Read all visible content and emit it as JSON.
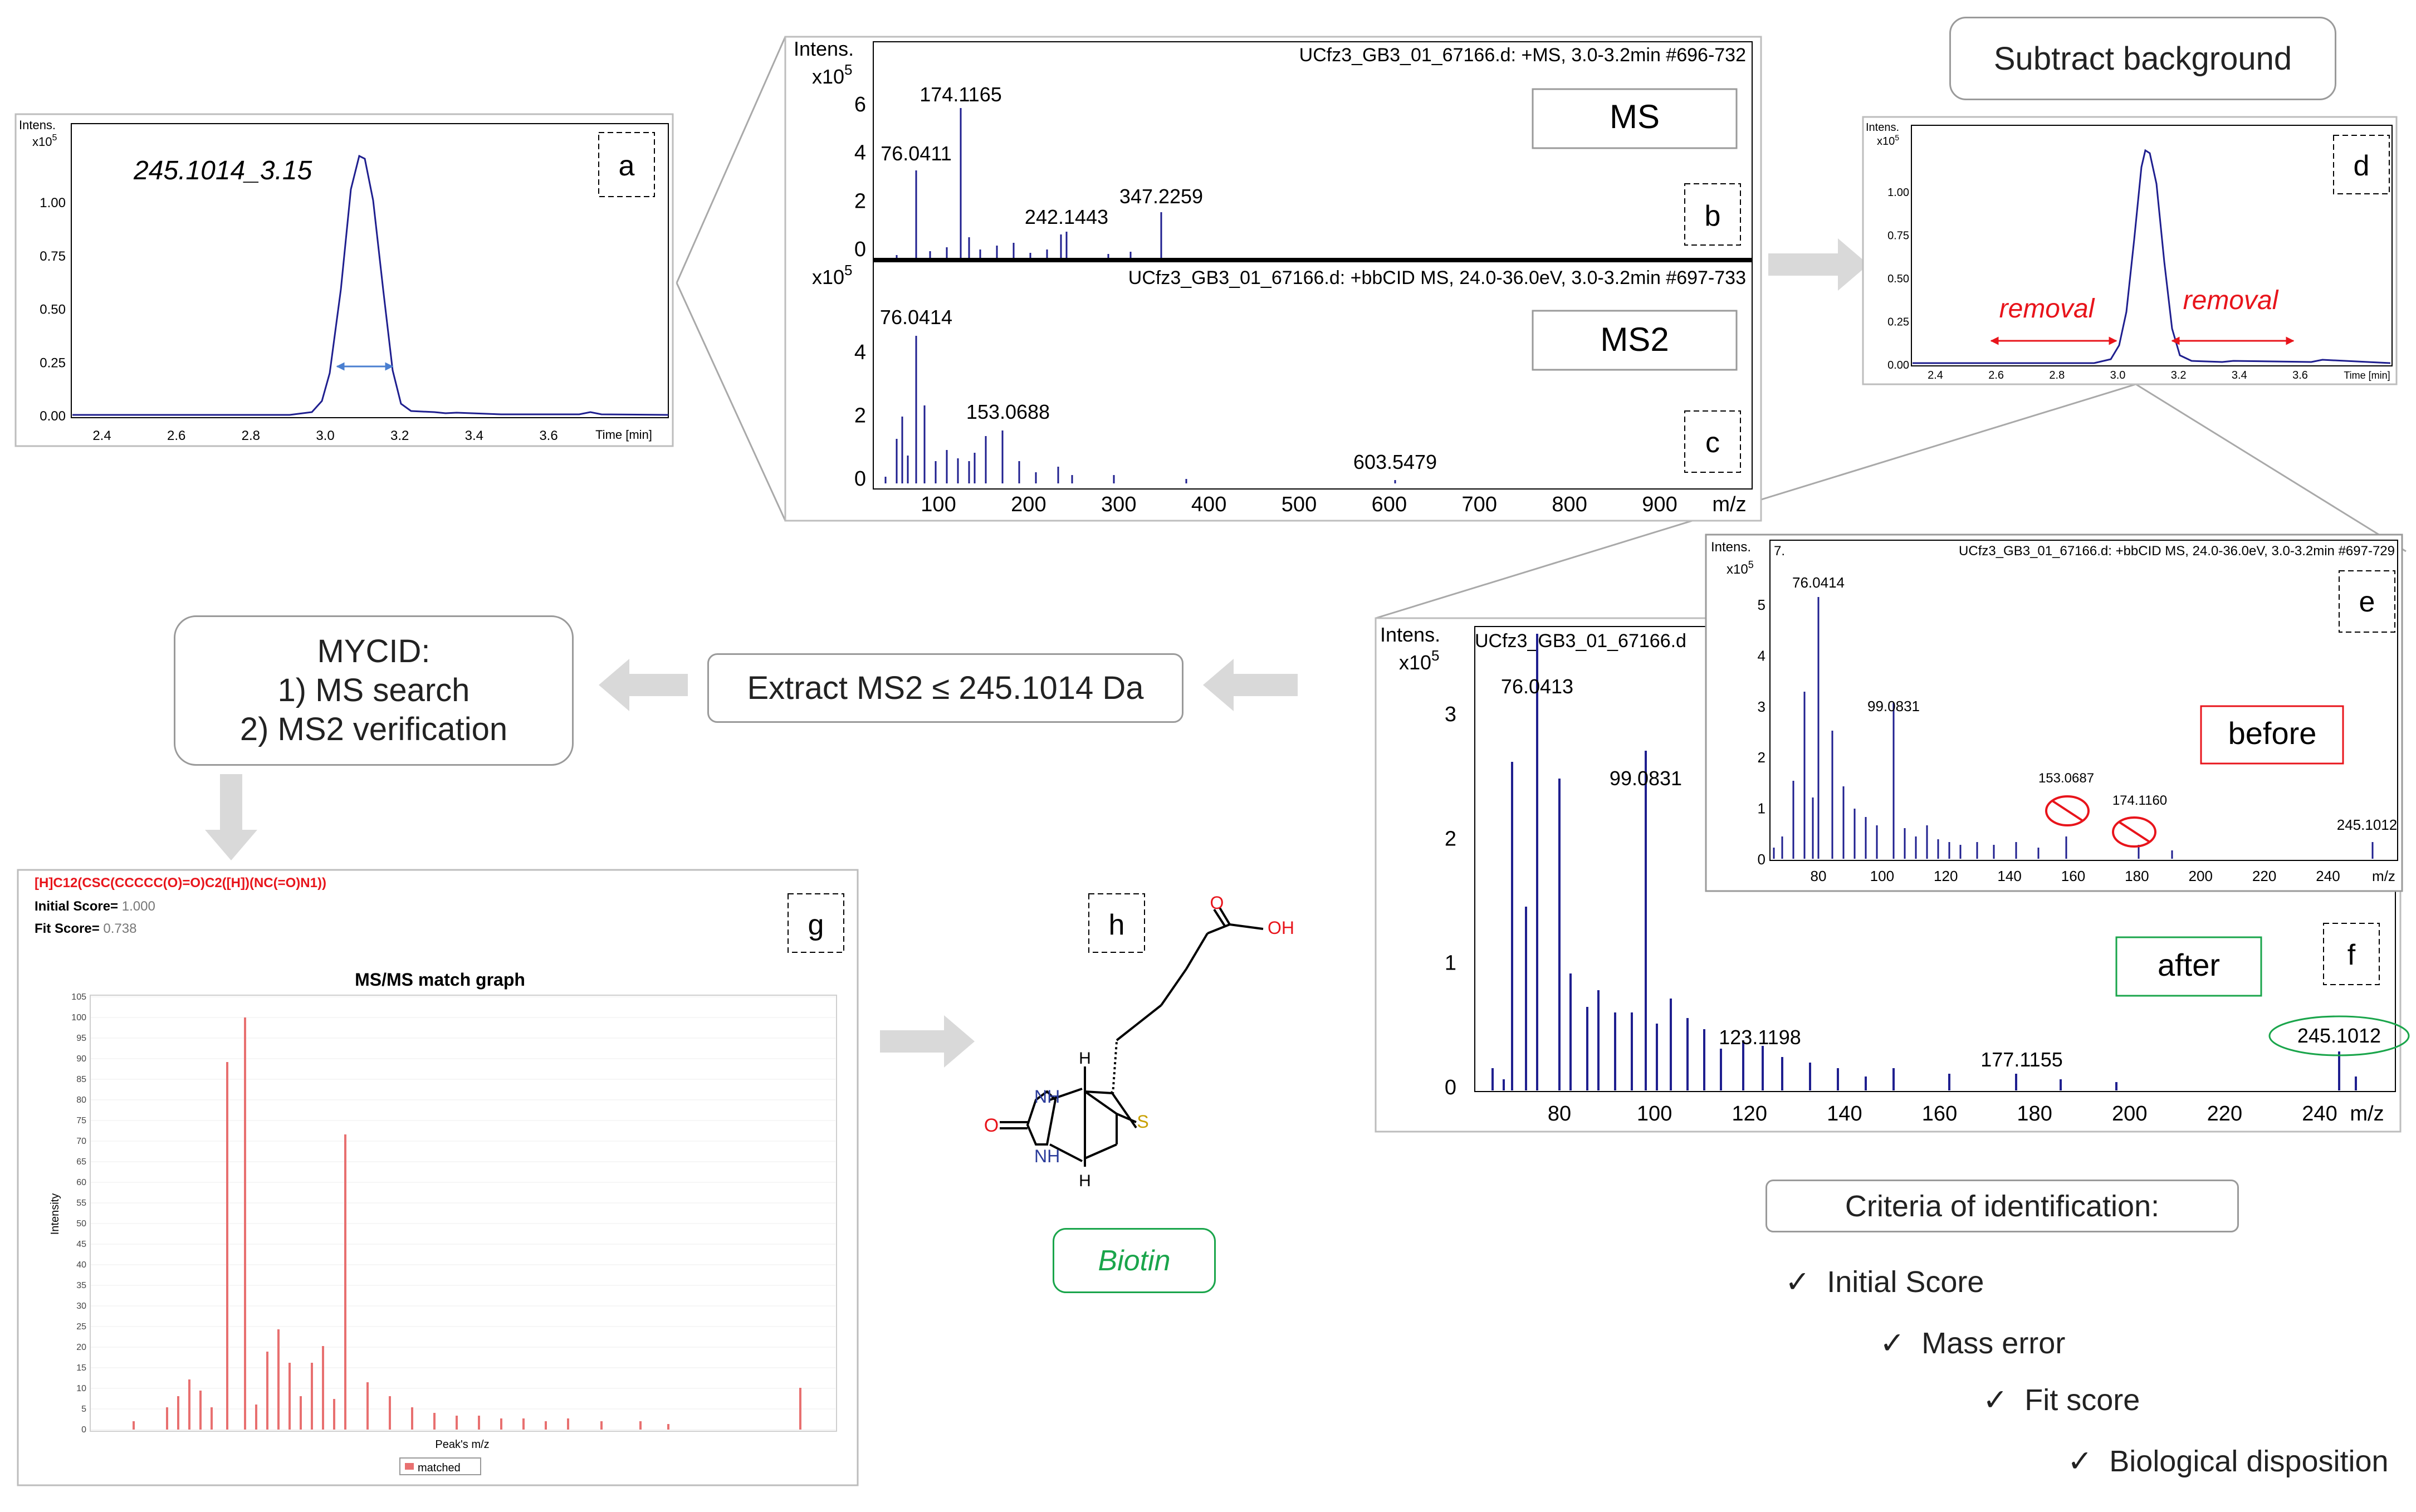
{
  "panels": {
    "a": {
      "label": "a",
      "title": "245.1014_3.15",
      "yaxis": "Intens.",
      "yexp": "x10",
      "yexp_sup": "5",
      "ticks_y": [
        "1.00",
        "0.75",
        "0.50",
        "0.25",
        "0.00"
      ],
      "ticks_x": [
        "2.4",
        "2.6",
        "2.8",
        "3.0",
        "3.2",
        "3.4",
        "3.6"
      ],
      "xlabel": "Time [min]"
    },
    "b": {
      "label": "b",
      "header": "UCfz3_GB3_01_67166.d: +MS, 3.0-3.2min #696-732",
      "box": "MS",
      "yaxis": "Intens.",
      "yexp": "x10",
      "yexp_sup": "5",
      "ticks_y": [
        "6",
        "4",
        "2",
        "0"
      ],
      "peaks": [
        "174.1165",
        "76.0411",
        "347.2259",
        "242.1443"
      ]
    },
    "c": {
      "label": "c",
      "header": "UCfz3_GB3_01_67166.d: +bbCID MS, 24.0-36.0eV, 3.0-3.2min #697-733",
      "box": "MS2",
      "yexp": "x10",
      "yexp_sup": "5",
      "ticks_y": [
        "4",
        "2",
        "0"
      ],
      "peaks": [
        "76.0414",
        "153.0688",
        "603.5479"
      ],
      "ticks_x": [
        "100",
        "200",
        "300",
        "400",
        "500",
        "600",
        "700",
        "800",
        "900"
      ],
      "xlabel": "m/z"
    },
    "d": {
      "label": "d",
      "yaxis": "Intens.",
      "yexp": "x10",
      "yexp_sup": "5",
      "ticks_y": [
        "1.00",
        "0.75",
        "0.50",
        "0.25",
        "0.00"
      ],
      "ticks_x": [
        "2.4",
        "2.6",
        "2.8",
        "3.0",
        "3.2",
        "3.4",
        "3.6"
      ],
      "xlabel": "Time [min]",
      "removal_left": "removal",
      "removal_right": "removal"
    },
    "e": {
      "label": "e",
      "num": "7.",
      "header": "UCfz3_GB3_01_67166.d: +bbCID MS, 24.0-36.0eV, 3.0-3.2min #697-729",
      "yaxis": "Intens.",
      "yexp": "x10",
      "yexp_sup": "5",
      "ticks_y": [
        "5",
        "4",
        "3",
        "2",
        "1",
        "0"
      ],
      "peaks": [
        "76.0414",
        "99.0831",
        "153.0687",
        "174.1160",
        "245.1012"
      ],
      "ticks_x": [
        "80",
        "100",
        "120",
        "140",
        "160",
        "180",
        "200",
        "220",
        "240"
      ],
      "xlabel": "m/z",
      "box": "before"
    },
    "f": {
      "label": "f",
      "header": "UCfz3_GB3_01_67166.d",
      "yaxis": "Intens.",
      "yexp": "x10",
      "yexp_sup": "5",
      "ticks_y": [
        "3",
        "2",
        "1",
        "0"
      ],
      "peaks": [
        "76.0413",
        "99.0831",
        "123.1198",
        "177.1155",
        "245.1012"
      ],
      "ticks_x": [
        "80",
        "100",
        "120",
        "140",
        "160",
        "180",
        "200",
        "220",
        "240"
      ],
      "xlabel": "m/z",
      "box": "after"
    },
    "g": {
      "label": "g",
      "smiles": "[H]C12(CSC(CCCCC(O)=O)C2([H])(NC(=O)N1))",
      "initial_label": "Initial Score=",
      "initial_value": "1.000",
      "fit_label": "Fit Score=",
      "fit_value": "0.738",
      "title": "MS/MS match graph",
      "ylabel": "Intensity",
      "xlabel": "Peak's m/z",
      "legend": "matched",
      "ticks_y": [
        "105",
        "100",
        "95",
        "90",
        "85",
        "80",
        "75",
        "70",
        "65",
        "60",
        "55",
        "50",
        "45",
        "40",
        "35",
        "30",
        "25",
        "20",
        "15",
        "10",
        "5",
        "0"
      ]
    },
    "h": {
      "label": "h",
      "atoms": {
        "O_acid": "O",
        "OH": "OH",
        "O_urea": "O",
        "NH1": "NH",
        "NH2": "NH",
        "H1": "H",
        "H2": "H",
        "S": "S"
      },
      "compound": "Biotin"
    }
  },
  "boxes": {
    "subtract": "Subtract background",
    "extract": "Extract MS2 ≤ 245.1014 Da",
    "mycid_title": "MYCID:",
    "mycid_1": "1) MS search",
    "mycid_2": "2) MS2 verification",
    "criteria": "Criteria of identification:"
  },
  "criteria": [
    "Initial Score",
    "Mass error",
    "Fit score",
    "Biological disposition"
  ],
  "check": "✓",
  "colors": {
    "trace": "#1f1f8f",
    "red": "#e8141b",
    "green": "#1aa54b",
    "arrow": "#d9d9d9",
    "border": "#9a9a9a",
    "match": "#e87070"
  }
}
